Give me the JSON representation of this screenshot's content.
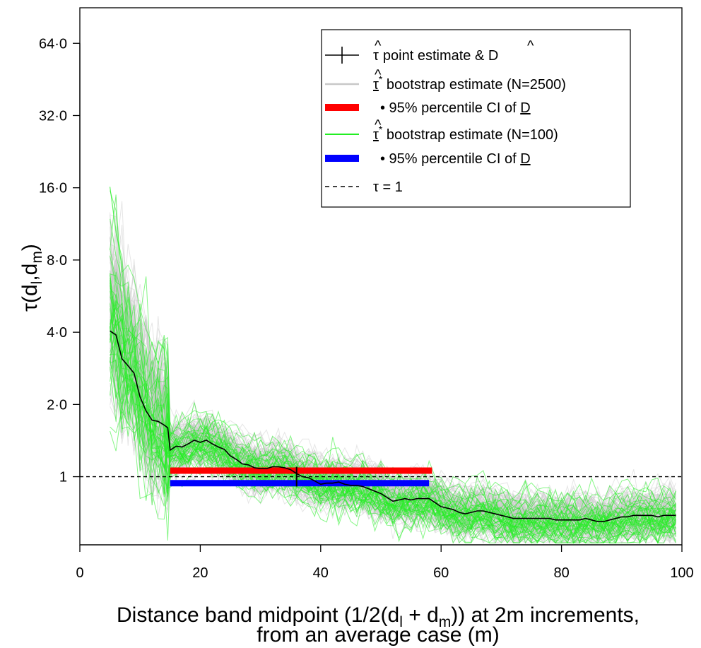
{
  "chart_data": {
    "type": "line",
    "title": "",
    "xlabel_line1": "Distance band midpoint (1/2(d",
    "xlabel_sub_l": "l",
    "xlabel_plus": " + d",
    "xlabel_sub_m": "m",
    "xlabel_line1_end": ")) at 2m increments,",
    "xlabel_line2": "from an average case (m)",
    "ylabel_main": "τ(d",
    "ylabel_sub_l": "l",
    "ylabel_comma": ",d",
    "ylabel_sub_m": "m",
    "ylabel_end": ")",
    "y_scale": "log2",
    "xlim": [
      0,
      100
    ],
    "ylim": [
      0.52,
      90
    ],
    "x_ticks": [
      0,
      20,
      40,
      60,
      80,
      100
    ],
    "x_tick_labels": [
      "0",
      "20",
      "40",
      "60",
      "80",
      "100"
    ],
    "y_ticks": [
      1,
      2,
      4,
      8,
      16,
      32,
      64
    ],
    "y_tick_labels": [
      "1",
      "2·0",
      "4·0",
      "8·0",
      "16·0",
      "32·0",
      "64·0"
    ],
    "grid": false,
    "legend_position": "top-right",
    "point_estimate": {
      "x": [
        5,
        6,
        7,
        8,
        9,
        10,
        11,
        12,
        13,
        14,
        14.6,
        15,
        16,
        17,
        18,
        19,
        20,
        21,
        22,
        23,
        24,
        25,
        26,
        27,
        28,
        29,
        30,
        31,
        32,
        33,
        34,
        35,
        36,
        37,
        38,
        39,
        40,
        41,
        42,
        43,
        44,
        45,
        46,
        47,
        48,
        49,
        50,
        51,
        52,
        53,
        54,
        55,
        56,
        57,
        58,
        59,
        60,
        61,
        62,
        63,
        64,
        65,
        66,
        67,
        68,
        69,
        70,
        71,
        72,
        73,
        74,
        75,
        76,
        77,
        78,
        79,
        80,
        81,
        82,
        83,
        84,
        85,
        86,
        87,
        88,
        89,
        90,
        91,
        92,
        93,
        94,
        95,
        96,
        97,
        98,
        99
      ],
      "y": [
        4.05,
        3.9,
        3.1,
        2.9,
        2.7,
        2.15,
        1.88,
        1.72,
        1.7,
        1.64,
        1.6,
        1.29,
        1.34,
        1.33,
        1.37,
        1.42,
        1.39,
        1.42,
        1.37,
        1.33,
        1.3,
        1.22,
        1.18,
        1.13,
        1.12,
        1.09,
        1.08,
        1.08,
        1.1,
        1.1,
        1.09,
        1.07,
        1.03,
        1.0,
        0.99,
        0.96,
        0.93,
        0.94,
        0.94,
        0.95,
        0.93,
        0.92,
        0.92,
        0.91,
        0.89,
        0.87,
        0.85,
        0.82,
        0.79,
        0.8,
        0.81,
        0.8,
        0.81,
        0.81,
        0.81,
        0.78,
        0.75,
        0.74,
        0.73,
        0.71,
        0.7,
        0.71,
        0.72,
        0.72,
        0.71,
        0.7,
        0.69,
        0.68,
        0.67,
        0.67,
        0.67,
        0.67,
        0.67,
        0.67,
        0.67,
        0.66,
        0.66,
        0.66,
        0.66,
        0.66,
        0.67,
        0.66,
        0.65,
        0.65,
        0.66,
        0.67,
        0.68,
        0.68,
        0.69,
        0.69,
        0.69,
        0.69,
        0.68,
        0.69,
        0.69,
        0.69
      ]
    },
    "point_marker": {
      "x": 36,
      "y": 1.0
    },
    "reference_line": {
      "y": 1
    },
    "ci_n2500": {
      "x_start": 15,
      "x_end": 58.5,
      "y": 1.06,
      "color": "#ff0000"
    },
    "ci_n100": {
      "x_start": 15,
      "x_end": 58,
      "y": 0.94,
      "color": "#0000ff"
    },
    "bootstrap_n2500": {
      "count": 2500,
      "color": "#c8c8c8"
    },
    "bootstrap_n100": {
      "count": 100,
      "color": "#00ee00"
    },
    "legend": [
      {
        "key": "point",
        "label": "point estimate & ",
        "symbol": "τ",
        "symbol2": "D"
      },
      {
        "key": "boot2500",
        "symbol": "τ",
        "sup": "*",
        "label": " bootstrap estimate (N=2500)"
      },
      {
        "key": "ci2500",
        "label": "• 95% percentile CI of ",
        "ul": "D"
      },
      {
        "key": "boot100",
        "symbol": "τ",
        "sup": "*",
        "label": " bootstrap estimate (N=100)"
      },
      {
        "key": "ci100",
        "label": "• 95% percentile CI of ",
        "ul": "D"
      },
      {
        "key": "ref",
        "label": "τ = 1"
      }
    ],
    "colors": {
      "point": "#000000",
      "boot2500": "#c8c8c8",
      "ci2500": "#ff0000",
      "boot100": "#22ee22",
      "ci100": "#0000ff",
      "ref": "#000000"
    }
  }
}
